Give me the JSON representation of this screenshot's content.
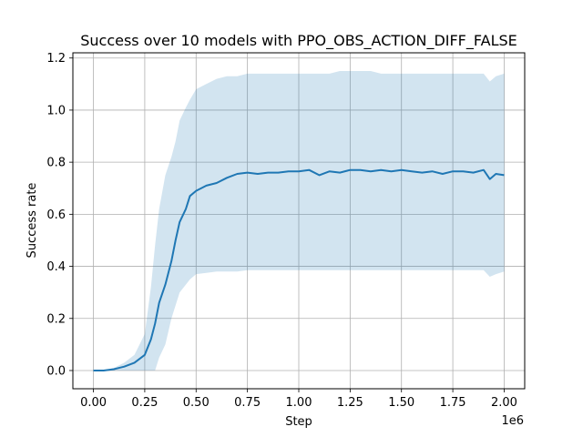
{
  "chart_data": {
    "type": "line",
    "title": "Success over 10 models with PPO_OBS_ACTION_DIFF_FALSE",
    "xlabel": "Step",
    "ylabel": "Success rate",
    "x_offset_label": "1e6",
    "xlim": [
      -0.1,
      2.1
    ],
    "ylim": [
      -0.07,
      1.22
    ],
    "xticks": [
      0.0,
      0.25,
      0.5,
      0.75,
      1.0,
      1.25,
      1.5,
      1.75,
      2.0
    ],
    "xtick_labels": [
      "0.00",
      "0.25",
      "0.50",
      "0.75",
      "1.00",
      "1.25",
      "1.50",
      "1.75",
      "2.00"
    ],
    "yticks": [
      0.0,
      0.2,
      0.4,
      0.6,
      0.8,
      1.0,
      1.2
    ],
    "ytick_labels": [
      "0.0",
      "0.2",
      "0.4",
      "0.6",
      "0.8",
      "1.0",
      "1.2"
    ],
    "grid": true,
    "series": [
      {
        "line_color": "#1f77b4",
        "band_color": "#1f77b4",
        "x": [
          0.0,
          0.05,
          0.1,
          0.15,
          0.2,
          0.25,
          0.28,
          0.3,
          0.32,
          0.35,
          0.38,
          0.4,
          0.42,
          0.45,
          0.47,
          0.5,
          0.55,
          0.6,
          0.65,
          0.7,
          0.75,
          0.8,
          0.85,
          0.9,
          0.95,
          1.0,
          1.05,
          1.1,
          1.15,
          1.2,
          1.25,
          1.3,
          1.35,
          1.4,
          1.45,
          1.5,
          1.55,
          1.6,
          1.65,
          1.7,
          1.75,
          1.8,
          1.85,
          1.9,
          1.93,
          1.96,
          2.0
        ],
        "mean": [
          0.0,
          0.0,
          0.005,
          0.015,
          0.03,
          0.06,
          0.12,
          0.18,
          0.26,
          0.33,
          0.42,
          0.5,
          0.57,
          0.62,
          0.67,
          0.69,
          0.71,
          0.72,
          0.74,
          0.755,
          0.76,
          0.755,
          0.76,
          0.76,
          0.765,
          0.765,
          0.77,
          0.75,
          0.765,
          0.76,
          0.77,
          0.77,
          0.765,
          0.77,
          0.765,
          0.77,
          0.765,
          0.76,
          0.765,
          0.755,
          0.765,
          0.765,
          0.76,
          0.77,
          0.735,
          0.755,
          0.75
        ],
        "upper": [
          0.0,
          0.0,
          0.01,
          0.03,
          0.06,
          0.14,
          0.32,
          0.48,
          0.62,
          0.75,
          0.82,
          0.88,
          0.96,
          1.01,
          1.04,
          1.08,
          1.1,
          1.12,
          1.13,
          1.13,
          1.14,
          1.14,
          1.14,
          1.14,
          1.14,
          1.14,
          1.14,
          1.14,
          1.14,
          1.15,
          1.15,
          1.15,
          1.15,
          1.14,
          1.14,
          1.14,
          1.14,
          1.14,
          1.14,
          1.14,
          1.14,
          1.14,
          1.14,
          1.14,
          1.11,
          1.13,
          1.14
        ],
        "lower": [
          0.0,
          0.0,
          0.0,
          0.0,
          0.0,
          0.0,
          0.0,
          0.0,
          0.05,
          0.1,
          0.2,
          0.25,
          0.3,
          0.33,
          0.35,
          0.37,
          0.375,
          0.38,
          0.38,
          0.38,
          0.385,
          0.385,
          0.385,
          0.385,
          0.385,
          0.385,
          0.385,
          0.385,
          0.385,
          0.385,
          0.385,
          0.385,
          0.385,
          0.385,
          0.385,
          0.385,
          0.385,
          0.385,
          0.385,
          0.385,
          0.385,
          0.385,
          0.385,
          0.385,
          0.36,
          0.37,
          0.38
        ]
      }
    ]
  }
}
